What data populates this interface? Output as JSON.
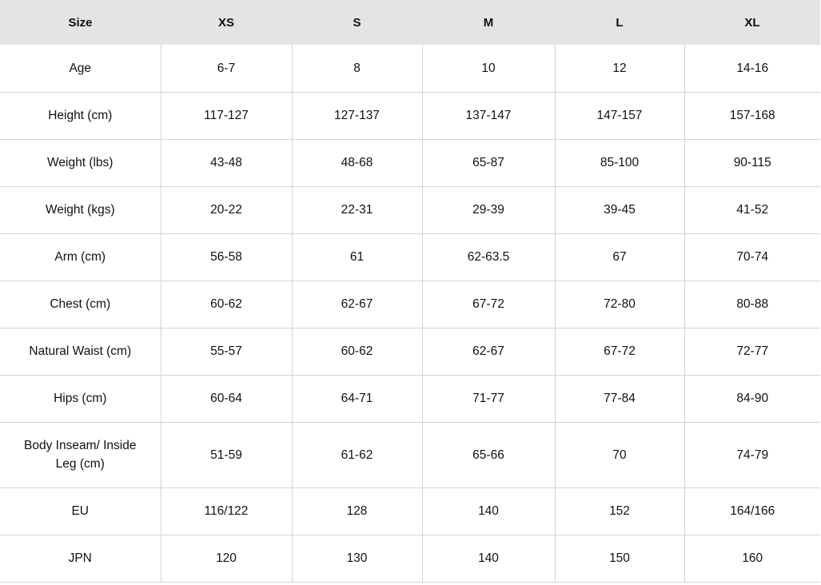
{
  "columns": [
    "Size",
    "XS",
    "S",
    "M",
    "L",
    "XL"
  ],
  "rows": [
    {
      "label": "Age",
      "values": [
        "6-7",
        "8",
        "10",
        "12",
        "14-16"
      ]
    },
    {
      "label": "Height (cm)",
      "values": [
        "117-127",
        "127-137",
        "137-147",
        "147-157",
        "157-168"
      ]
    },
    {
      "label": "Weight (lbs)",
      "values": [
        "43-48",
        "48-68",
        "65-87",
        "85-100",
        "90-115"
      ]
    },
    {
      "label": "Weight (kgs)",
      "values": [
        "20-22",
        "22-31",
        "29-39",
        "39-45",
        "41-52"
      ]
    },
    {
      "label": "Arm (cm)",
      "values": [
        "56-58",
        "61",
        "62-63.5",
        "67",
        "70-74"
      ]
    },
    {
      "label": "Chest (cm)",
      "values": [
        "60-62",
        "62-67",
        "67-72",
        "72-80",
        "80-88"
      ]
    },
    {
      "label": "Natural Waist (cm)",
      "values": [
        "55-57",
        "60-62",
        "62-67",
        "67-72",
        "72-77"
      ]
    },
    {
      "label": "Hips (cm)",
      "values": [
        "60-64",
        "64-71",
        "71-77",
        "77-84",
        "84-90"
      ]
    },
    {
      "label": "Body Inseam/ Inside Leg (cm)",
      "values": [
        "51-59",
        "61-62",
        "65-66",
        "70",
        "74-79"
      ]
    },
    {
      "label": "EU",
      "values": [
        "116/122",
        "128",
        "140",
        "152",
        "164/166"
      ]
    },
    {
      "label": "JPN",
      "values": [
        "120",
        "130",
        "140",
        "150",
        "160"
      ]
    }
  ]
}
